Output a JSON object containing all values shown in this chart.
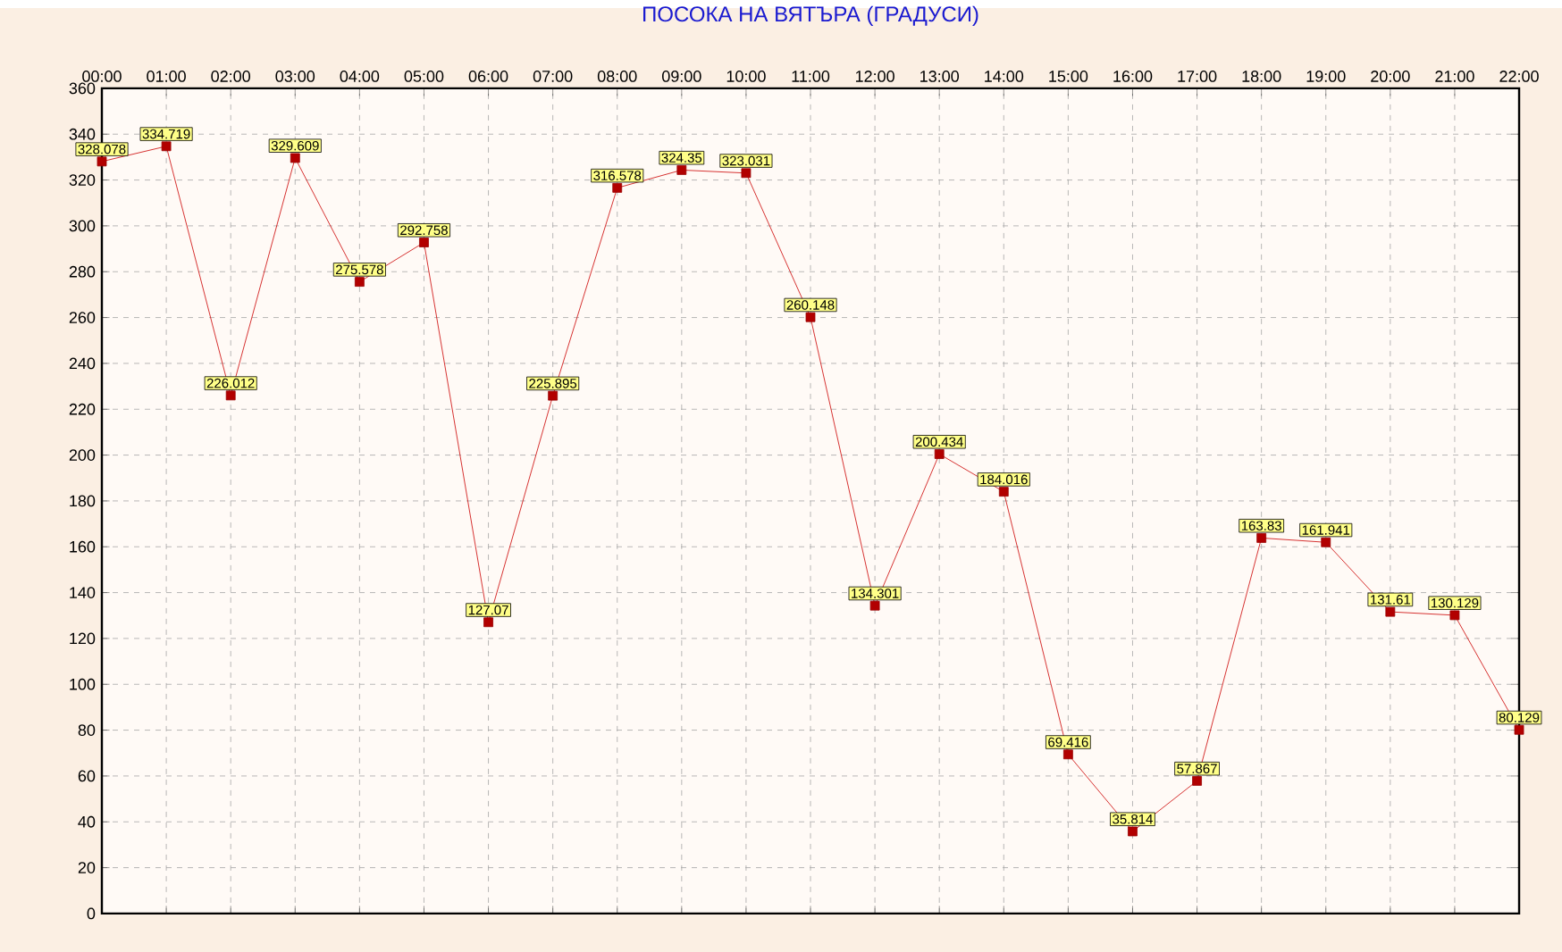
{
  "chart_data": {
    "type": "line",
    "title": "ПОСОКА НА ВЯТЪРА    (ГРАДУСИ)",
    "categories": [
      "00:00",
      "01:00",
      "02:00",
      "03:00",
      "04:00",
      "05:00",
      "06:00",
      "07:00",
      "08:00",
      "09:00",
      "10:00",
      "11:00",
      "12:00",
      "13:00",
      "14:00",
      "15:00",
      "16:00",
      "17:00",
      "18:00",
      "19:00",
      "20:00",
      "21:00",
      "22:00"
    ],
    "series": [
      {
        "color": "#cc0000",
        "values": [
          328.078,
          334.719,
          226.012,
          329.609,
          275.578,
          292.758,
          127.07,
          225.895,
          316.578,
          324.35,
          323.031,
          260.148,
          134.301,
          200.434,
          184.016,
          69.416,
          35.814,
          57.867,
          163.83,
          161.941,
          131.61,
          130.129,
          80.129
        ]
      }
    ],
    "ylim": [
      0,
      360
    ],
    "yticks": [
      0,
      20,
      40,
      60,
      80,
      100,
      120,
      140,
      160,
      180,
      200,
      220,
      240,
      260,
      280,
      300,
      320,
      340,
      360
    ],
    "grid": true,
    "marker": "square",
    "line_style": "solid",
    "data_labels": true
  }
}
